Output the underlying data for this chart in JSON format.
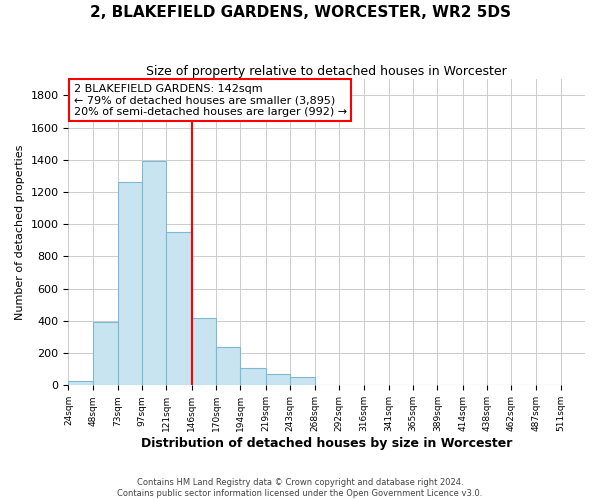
{
  "title": "2, BLAKEFIELD GARDENS, WORCESTER, WR2 5DS",
  "subtitle": "Size of property relative to detached houses in Worcester",
  "xlabel": "Distribution of detached houses by size in Worcester",
  "ylabel": "Number of detached properties",
  "bar_left_edges": [
    24,
    48,
    73,
    97,
    121,
    146,
    170,
    194,
    219,
    243,
    268,
    292,
    316,
    341,
    365,
    389,
    414,
    438,
    462,
    487
  ],
  "bar_heights": [
    25,
    390,
    1260,
    1395,
    950,
    420,
    235,
    110,
    70,
    50,
    5,
    5,
    2,
    2,
    2,
    2,
    0,
    0,
    0,
    2
  ],
  "bar_widths": [
    24,
    25,
    24,
    24,
    25,
    24,
    24,
    25,
    24,
    25,
    24,
    24,
    25,
    24,
    24,
    25,
    24,
    24,
    25,
    24
  ],
  "bar_color": "#c8e4f0",
  "bar_edgecolor": "#7db8d4",
  "vline_x": 146,
  "vline_color": "red",
  "annotation_box_text": "2 BLAKEFIELD GARDENS: 142sqm\n← 79% of detached houses are smaller (3,895)\n20% of semi-detached houses are larger (992) →",
  "tick_labels": [
    "24sqm",
    "48sqm",
    "73sqm",
    "97sqm",
    "121sqm",
    "146sqm",
    "170sqm",
    "194sqm",
    "219sqm",
    "243sqm",
    "268sqm",
    "292sqm",
    "316sqm",
    "341sqm",
    "365sqm",
    "389sqm",
    "414sqm",
    "438sqm",
    "462sqm",
    "487sqm",
    "511sqm"
  ],
  "ylim": [
    0,
    1900
  ],
  "yticks": [
    0,
    200,
    400,
    600,
    800,
    1000,
    1200,
    1400,
    1600,
    1800
  ],
  "footer_line1": "Contains HM Land Registry data © Crown copyright and database right 2024.",
  "footer_line2": "Contains public sector information licensed under the Open Government Licence v3.0.",
  "background_color": "#ffffff",
  "grid_color": "#cccccc"
}
